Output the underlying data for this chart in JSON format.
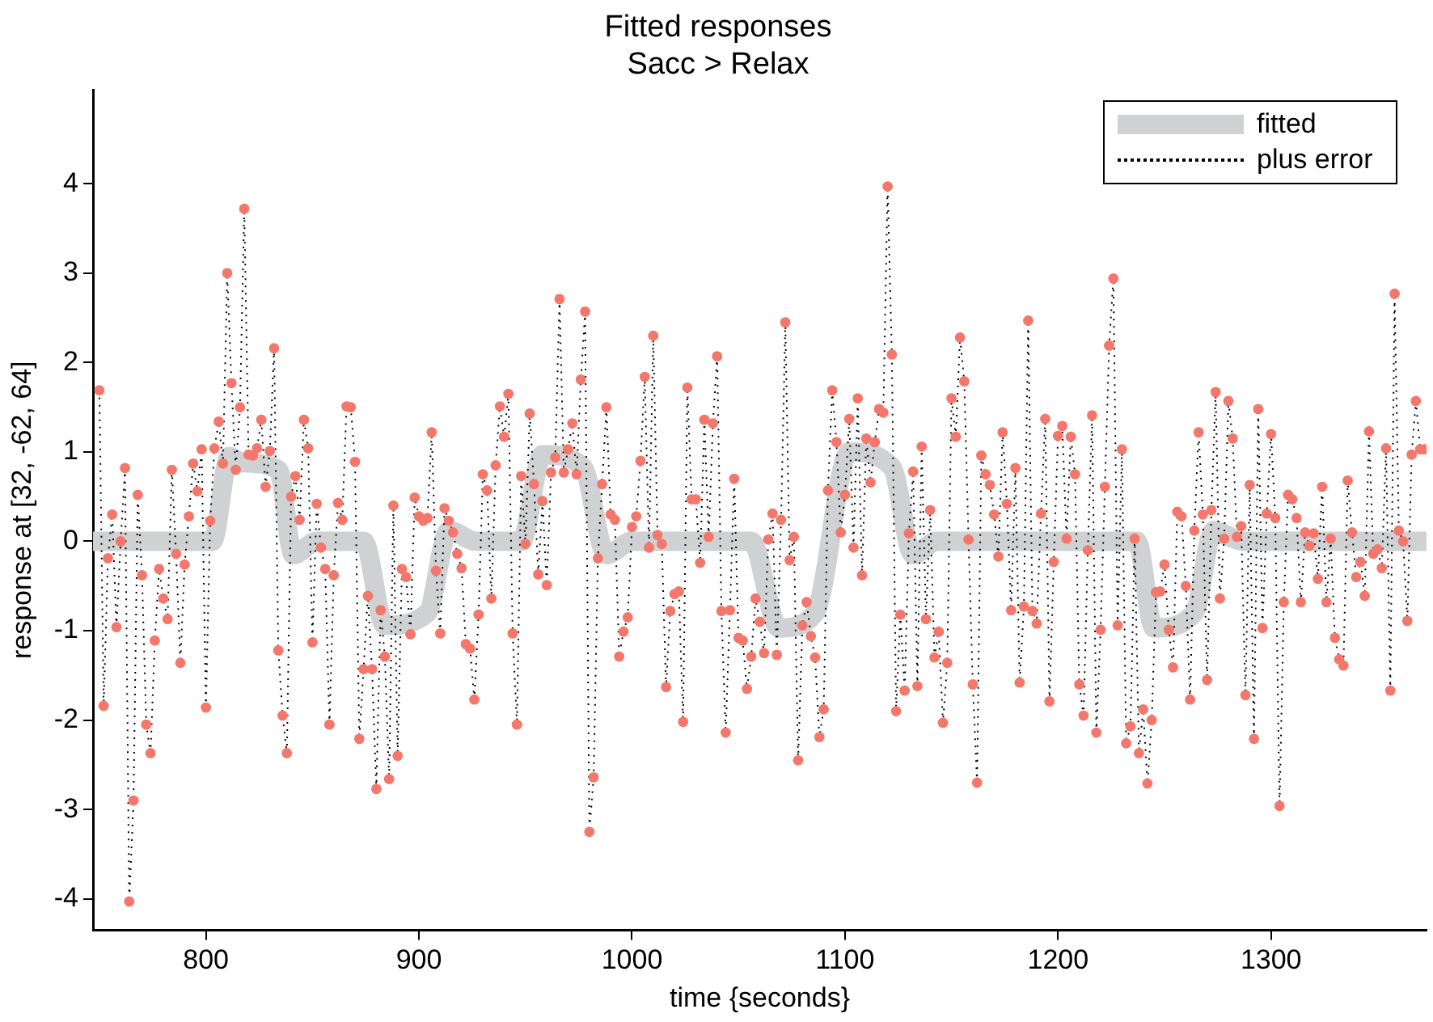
{
  "chart_data": {
    "type": "line",
    "title": "Fitted responses",
    "subtitle": "Sacc > Relax",
    "xlabel": "time {seconds}",
    "ylabel": "response at [32, -62, 64]",
    "xlim": [
      747,
      1373
    ],
    "ylim": [
      -4.35,
      5.05
    ],
    "xticks": [
      800,
      900,
      1000,
      1100,
      1200,
      1300
    ],
    "yticks": [
      -4,
      -3,
      -2,
      -1,
      0,
      1,
      2,
      3,
      4
    ],
    "grid": false,
    "legend": "top right",
    "series": [
      {
        "name": "fitted",
        "type": "line",
        "color": "#d0d1d3",
        "marker": "none",
        "line_style": "solid",
        "x": [
          747,
          803,
          811,
          817,
          834,
          841,
          852,
          874,
          884,
          904,
          914,
          927,
          948,
          958,
          977,
          988,
          1000,
          1056,
          1069,
          1086,
          1102,
          1122,
          1132,
          1143,
          1237,
          1245,
          1264,
          1273,
          1287,
          1373
        ],
        "values": [
          0,
          0,
          0.95,
          0.88,
          0.8,
          -0.15,
          0,
          0,
          -0.94,
          -0.8,
          0.12,
          0,
          0,
          0.97,
          0.83,
          -0.15,
          0,
          0,
          -0.97,
          -0.8,
          1.0,
          0.83,
          -0.15,
          0,
          0,
          -0.97,
          -0.8,
          0.12,
          0,
          0
        ]
      },
      {
        "name": "plus error",
        "type": "line",
        "color": "#f4776b",
        "marker": "circle",
        "line_style": "dotted",
        "x": [
          750,
          752,
          754,
          756,
          758,
          760,
          762,
          764,
          766,
          768,
          770,
          772,
          774,
          776,
          778,
          780,
          782,
          784,
          786,
          788,
          790,
          792,
          794,
          796,
          798,
          800,
          802,
          804,
          806,
          808,
          810,
          812,
          814,
          816,
          818,
          820,
          822,
          824,
          826,
          828,
          830,
          832,
          834,
          836,
          838,
          840,
          842,
          844,
          846,
          848,
          850,
          852,
          854,
          856,
          858,
          860,
          862,
          864,
          866,
          868,
          870,
          872,
          874,
          876,
          878,
          880,
          882,
          884,
          886,
          888,
          890,
          892,
          894,
          896,
          898,
          900,
          902,
          904,
          906,
          908,
          910,
          912,
          914,
          916,
          918,
          920,
          922,
          924,
          926,
          928,
          930,
          932,
          934,
          936,
          938,
          940,
          942,
          944,
          946,
          948,
          950,
          952,
          954,
          956,
          958,
          960,
          962,
          964,
          966,
          968,
          970,
          972,
          974,
          976,
          978,
          980,
          982,
          984,
          986,
          988,
          990,
          992,
          994,
          996,
          998,
          1000,
          1002,
          1004,
          1006,
          1008,
          1010,
          1012,
          1014,
          1016,
          1018,
          1020,
          1022,
          1024,
          1026,
          1028,
          1030,
          1032,
          1034,
          1036,
          1038,
          1040,
          1042,
          1044,
          1046,
          1048,
          1050,
          1052,
          1054,
          1056,
          1058,
          1060,
          1062,
          1064,
          1066,
          1068,
          1070,
          1072,
          1074,
          1076,
          1078,
          1080,
          1082,
          1084,
          1086,
          1088,
          1090,
          1092,
          1094,
          1096,
          1098,
          1100,
          1102,
          1104,
          1106,
          1108,
          1110,
          1112,
          1114,
          1116,
          1118,
          1120,
          1122,
          1124,
          1126,
          1128,
          1130,
          1132,
          1134,
          1136,
          1138,
          1140,
          1142,
          1144,
          1146,
          1148,
          1150,
          1152,
          1154,
          1156,
          1158,
          1160,
          1162,
          1164,
          1166,
          1168,
          1170,
          1172,
          1174,
          1176,
          1178,
          1180,
          1182,
          1184,
          1186,
          1188,
          1190,
          1192,
          1194,
          1196,
          1198,
          1200,
          1202,
          1204,
          1206,
          1208,
          1210,
          1212,
          1214,
          1216,
          1218,
          1220,
          1222,
          1224,
          1226,
          1228,
          1230,
          1232,
          1234,
          1236,
          1238,
          1240,
          1242,
          1244,
          1246,
          1248,
          1250,
          1252,
          1254,
          1256,
          1258,
          1260,
          1262,
          1264,
          1266,
          1268,
          1270,
          1272,
          1274,
          1276,
          1278,
          1280,
          1282,
          1284,
          1286,
          1288,
          1290,
          1292,
          1294,
          1296,
          1298,
          1300,
          1302,
          1304,
          1306,
          1308,
          1310,
          1312,
          1314,
          1316,
          1318,
          1320,
          1322,
          1324,
          1326,
          1328,
          1330,
          1332,
          1334,
          1336,
          1338,
          1340,
          1342,
          1344,
          1346,
          1348,
          1350,
          1352,
          1354,
          1356,
          1358,
          1360,
          1362,
          1364,
          1366,
          1368,
          1370,
          1372
        ],
        "values": [
          1.69,
          -1.84,
          -0.19,
          0.3,
          -0.96,
          0,
          0.82,
          -4.03,
          -2.9,
          0.52,
          -0.38,
          -2.05,
          -2.37,
          -1.11,
          -0.31,
          -0.64,
          -0.87,
          0.8,
          -0.14,
          -1.36,
          -0.26,
          0.28,
          0.87,
          0.56,
          1.03,
          -1.86,
          0.23,
          1.04,
          1.34,
          0.87,
          3.0,
          1.77,
          0.8,
          1.5,
          3.72,
          0.97,
          0.96,
          1.04,
          1.36,
          0.61,
          1.01,
          2.16,
          -1.22,
          -1.95,
          -2.37,
          0.5,
          0.73,
          0.24,
          1.36,
          1.04,
          -1.13,
          0.42,
          -0.07,
          -0.31,
          -2.05,
          -0.38,
          0.43,
          0.24,
          1.51,
          1.5,
          0.89,
          -2.21,
          -1.43,
          -0.61,
          -1.43,
          -2.77,
          -0.77,
          -1.29,
          -2.66,
          0.4,
          -2.4,
          -0.31,
          -0.4,
          -1.04,
          0.49,
          0.28,
          0.23,
          0.26,
          1.22,
          -0.33,
          -1.03,
          0.37,
          0.23,
          0.1,
          -0.14,
          -0.3,
          -1.15,
          -1.2,
          -1.77,
          -0.82,
          0.75,
          0.57,
          -0.64,
          0.85,
          1.51,
          1.17,
          1.65,
          -1.03,
          -2.05,
          0.73,
          -0.03,
          1.43,
          0.64,
          -0.37,
          0.45,
          -0.49,
          0.77,
          0.94,
          2.71,
          0.77,
          1.03,
          1.32,
          0.75,
          1.81,
          2.57,
          -3.25,
          -2.64,
          -0.19,
          0.64,
          1.5,
          0.3,
          0.24,
          -1.29,
          -1.01,
          -0.85,
          0.16,
          0.28,
          0.9,
          1.84,
          -0.07,
          2.3,
          0.07,
          -0.03,
          -1.63,
          -0.78,
          -0.59,
          -0.56,
          -2.02,
          1.72,
          0.47,
          0.47,
          -0.24,
          1.36,
          0.05,
          1.32,
          2.07,
          -0.78,
          -2.14,
          -0.77,
          0.7,
          -1.08,
          -1.11,
          -1.65,
          -1.29,
          -0.64,
          -0.9,
          -1.25,
          0.02,
          0.31,
          -1.27,
          0.24,
          2.45,
          -0.21,
          0.05,
          -2.45,
          -0.94,
          -0.68,
          -1.06,
          -1.3,
          -2.19,
          -1.88,
          0.57,
          1.69,
          1.11,
          0.1,
          0.52,
          1.37,
          -0.07,
          1.6,
          -0.38,
          1.15,
          0.66,
          1.11,
          1.48,
          1.44,
          3.97,
          2.09,
          -1.9,
          -0.82,
          -1.67,
          0.09,
          0.78,
          -1.62,
          1.06,
          -0.87,
          0.35,
          -1.3,
          -1.01,
          -2.03,
          -1.36,
          1.6,
          1.17,
          2.28,
          1.79,
          0.02,
          -1.6,
          -2.7,
          0.96,
          0.75,
          0.63,
          0.3,
          -0.17,
          1.22,
          0.42,
          -0.77,
          0.82,
          -1.58,
          -0.73,
          2.47,
          -0.78,
          -0.92,
          0.31,
          1.37,
          -1.79,
          -0.23,
          1.18,
          1.29,
          0.03,
          1.17,
          0.75,
          -1.6,
          -1.95,
          -0.1,
          1.41,
          -2.14,
          -0.99,
          0.61,
          2.19,
          2.94,
          -0.94,
          1.03,
          -2.26,
          -2.07,
          0.03,
          -2.37,
          -1.88,
          -2.71,
          -2.0,
          -0.57,
          -0.56,
          -0.26,
          -0.99,
          -1.41,
          0.33,
          0.28,
          -0.5,
          -1.77,
          0.12,
          1.22,
          0.3,
          -1.55,
          0.35,
          1.67,
          -0.64,
          0.03,
          1.57,
          1.15,
          0.05,
          0.17,
          -1.72,
          0.63,
          -2.21,
          1.48,
          -0.97,
          0.31,
          1.2,
          0.26,
          -2.96,
          -0.68,
          0.52,
          0.47,
          0.26,
          -0.68,
          0.1,
          -0.05,
          0.09,
          -0.42,
          0.61,
          -0.68,
          0.03,
          -1.08,
          -1.32,
          -1.39,
          0.68,
          0.1,
          -0.4,
          -0.23,
          -0.61,
          1.23,
          -0.14,
          -0.09,
          -0.3,
          1.04,
          -1.67,
          2.77,
          0.12,
          0.0,
          -0.89,
          0.97,
          1.57,
          1.03,
          1.03
        ]
      }
    ]
  }
}
